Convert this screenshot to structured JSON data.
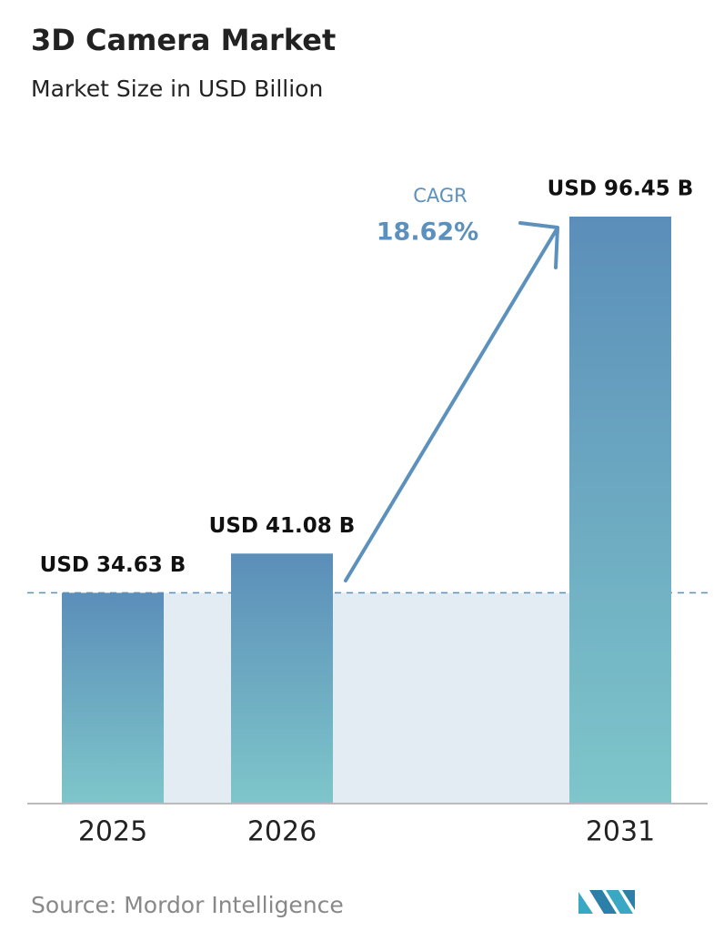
{
  "chart_data": {
    "type": "bar",
    "title": "3D Camera Market",
    "subtitle": "Market Size in USD Billion",
    "categories": [
      "2025",
      "2026",
      "2031"
    ],
    "values": [
      34.63,
      41.08,
      96.45
    ],
    "value_labels": [
      "USD 34.63 B",
      "USD 41.08 B",
      "USD 96.45 B"
    ],
    "annotation": {
      "label": "CAGR",
      "value": "18.62%"
    },
    "source": "Source: Mordor Intelligence"
  }
}
